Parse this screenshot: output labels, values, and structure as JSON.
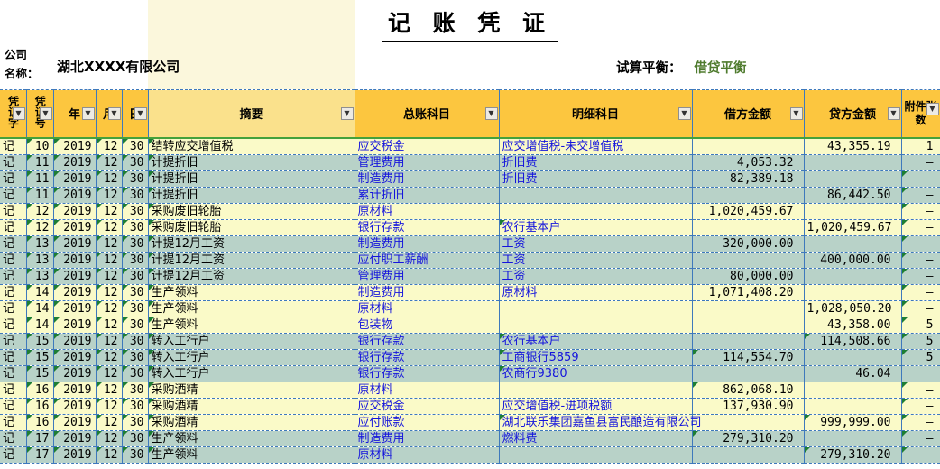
{
  "title": "记 账 凭 证",
  "company": {
    "label_line1": "公司",
    "label_line2": "名称：",
    "value": "湖北XXXX有限公司"
  },
  "trial_balance": {
    "label": "试算平衡：",
    "value": "借贷平衡"
  },
  "icons": {
    "filter_dropdown": "▼"
  },
  "colors": {
    "header_fill": "#FCC63F",
    "header_summary_fill": "#FAE18C",
    "row_yellow": "#FAFAC8",
    "row_teal": "#B8D2C8",
    "band_cream": "#FBF7DC",
    "grid_blue": "#3E79BC",
    "header_green_line": "#44A13C",
    "link_blue": "#1414DC",
    "triangle_green": "#1E7E34",
    "balance_green": "#4F7B2E"
  },
  "table": {
    "columns": [
      {
        "key": "zi",
        "label": "凭证字"
      },
      {
        "key": "hao",
        "label": "凭证号"
      },
      {
        "key": "nian",
        "label": "年"
      },
      {
        "key": "yue",
        "label": "月"
      },
      {
        "key": "ri",
        "label": "日"
      },
      {
        "key": "zhaiyao",
        "label": "摘要"
      },
      {
        "key": "zong",
        "label": "总账科目"
      },
      {
        "key": "mingxi",
        "label": "明细科目"
      },
      {
        "key": "jie",
        "label": "借方金额"
      },
      {
        "key": "dai",
        "label": "贷方金额"
      },
      {
        "key": "fujian",
        "label": "附件张数"
      }
    ],
    "rows": [
      {
        "zi": "记",
        "hao": "10",
        "nian": "2019",
        "yue": "12",
        "ri": "30",
        "zhaiyao": "结转应交增值税",
        "zong": "应交税金",
        "mingxi": "应交增值税-未交增值税",
        "jie": "",
        "dai": "43,355.19",
        "fujian": "1",
        "shade": "y",
        "tri": []
      },
      {
        "zi": "记",
        "hao": "11",
        "nian": "2019",
        "yue": "12",
        "ri": "30",
        "zhaiyao": "计提折旧",
        "zong": "管理费用",
        "mingxi": "折旧费",
        "jie": "4,053.32",
        "dai": "",
        "fujian": "–",
        "shade": "t",
        "tri": []
      },
      {
        "zi": "记",
        "hao": "11",
        "nian": "2019",
        "yue": "12",
        "ri": "30",
        "zhaiyao": "计提折旧",
        "zong": "制造费用",
        "mingxi": "折旧费",
        "jie": "82,389.18",
        "dai": "",
        "fujian": "–",
        "shade": "t",
        "tri": [
          "fujian"
        ]
      },
      {
        "zi": "记",
        "hao": "11",
        "nian": "2019",
        "yue": "12",
        "ri": "30",
        "zhaiyao": "计提折旧",
        "zong": "累计折旧",
        "mingxi": "",
        "jie": "",
        "dai": "86,442.50",
        "fujian": "–",
        "shade": "t",
        "tri": [
          "fujian"
        ]
      },
      {
        "zi": "记",
        "hao": "12",
        "nian": "2019",
        "yue": "12",
        "ri": "30",
        "zhaiyao": "采购废旧轮胎",
        "zong": "原材料",
        "mingxi": "",
        "jie": "1,020,459.67",
        "dai": "",
        "fujian": "–",
        "shade": "y",
        "tri": [
          "fujian"
        ]
      },
      {
        "zi": "记",
        "hao": "12",
        "nian": "2019",
        "yue": "12",
        "ri": "30",
        "zhaiyao": "采购废旧轮胎",
        "zong": "银行存款",
        "mingxi": "农行基本户",
        "jie": "",
        "dai": "1,020,459.67",
        "fujian": "–",
        "shade": "y",
        "tri": [
          "mingxi",
          "fujian"
        ]
      },
      {
        "zi": "记",
        "hao": "13",
        "nian": "2019",
        "yue": "12",
        "ri": "30",
        "zhaiyao": "计提12月工资",
        "zong": "制造费用",
        "mingxi": "工资",
        "jie": "320,000.00",
        "dai": "",
        "fujian": "–",
        "shade": "t",
        "tri": [
          "fujian"
        ]
      },
      {
        "zi": "记",
        "hao": "13",
        "nian": "2019",
        "yue": "12",
        "ri": "30",
        "zhaiyao": "计提12月工资",
        "zong": "应付职工薪酬",
        "mingxi": "工资",
        "jie": "",
        "dai": "400,000.00",
        "fujian": "–",
        "shade": "t",
        "tri": [
          "fujian"
        ]
      },
      {
        "zi": "记",
        "hao": "13",
        "nian": "2019",
        "yue": "12",
        "ri": "30",
        "zhaiyao": "计提12月工资",
        "zong": "管理费用",
        "mingxi": "工资",
        "jie": "80,000.00",
        "dai": "",
        "fujian": "–",
        "shade": "t",
        "tri": [
          "fujian"
        ]
      },
      {
        "zi": "记",
        "hao": "14",
        "nian": "2019",
        "yue": "12",
        "ri": "30",
        "zhaiyao": "生产领料",
        "zong": "制造费用",
        "mingxi": "原材料",
        "jie": "1,071,408.20",
        "dai": "",
        "fujian": "–",
        "shade": "y",
        "tri": [
          "fujian"
        ]
      },
      {
        "zi": "记",
        "hao": "14",
        "nian": "2019",
        "yue": "12",
        "ri": "30",
        "zhaiyao": "生产领料",
        "zong": "原材料",
        "mingxi": "",
        "jie": "",
        "dai": "1,028,050.20",
        "fujian": "–",
        "shade": "y",
        "tri": [
          "fujian"
        ]
      },
      {
        "zi": "记",
        "hao": "14",
        "nian": "2019",
        "yue": "12",
        "ri": "30",
        "zhaiyao": "生产领料",
        "zong": "包装物",
        "mingxi": "",
        "jie": "",
        "dai": "43,358.00",
        "fujian": "5",
        "shade": "y",
        "tri": [
          "fujian"
        ]
      },
      {
        "zi": "记",
        "hao": "15",
        "nian": "2019",
        "yue": "12",
        "ri": "30",
        "zhaiyao": "转入工行户",
        "zong": "银行存款",
        "mingxi": "农行基本户",
        "jie": "",
        "dai": "114,508.66",
        "fujian": "5",
        "shade": "t",
        "tri": [
          "mingxi",
          "dai",
          "fujian"
        ]
      },
      {
        "zi": "记",
        "hao": "15",
        "nian": "2019",
        "yue": "12",
        "ri": "30",
        "zhaiyao": "转入工行户",
        "zong": "银行存款",
        "mingxi": "工商银行5859",
        "jie": "114,554.70",
        "dai": "",
        "fujian": "5",
        "shade": "t",
        "tri": [
          "mingxi",
          "jie",
          "fujian"
        ]
      },
      {
        "zi": "记",
        "hao": "15",
        "nian": "2019",
        "yue": "12",
        "ri": "30",
        "zhaiyao": "转入工行户",
        "zong": "银行存款",
        "mingxi": "农商行9380",
        "jie": "",
        "dai": "46.04",
        "fujian": "",
        "shade": "t",
        "tri": [
          "mingxi"
        ]
      },
      {
        "zi": "记",
        "hao": "16",
        "nian": "2019",
        "yue": "12",
        "ri": "30",
        "zhaiyao": "采购酒精",
        "zong": "原材料",
        "mingxi": "",
        "jie": "862,068.10",
        "dai": "",
        "fujian": "–",
        "shade": "y",
        "tri": [
          "jie",
          "fujian"
        ]
      },
      {
        "zi": "记",
        "hao": "16",
        "nian": "2019",
        "yue": "12",
        "ri": "30",
        "zhaiyao": "采购酒精",
        "zong": "应交税金",
        "mingxi": "应交增值税-进项税额",
        "jie": "137,930.90",
        "dai": "",
        "fujian": "–",
        "shade": "y",
        "tri": [
          "fujian"
        ]
      },
      {
        "zi": "记",
        "hao": "16",
        "nian": "2019",
        "yue": "12",
        "ri": "30",
        "zhaiyao": "采购酒精",
        "zong": "应付账款",
        "mingxi": "湖北联乐集团嘉鱼县富民酿造有限公司",
        "jie": "",
        "dai": "999,999.00",
        "fujian": "–",
        "shade": "y",
        "tri": [
          "mingxi",
          "dai",
          "fujian"
        ]
      },
      {
        "zi": "记",
        "hao": "17",
        "nian": "2019",
        "yue": "12",
        "ri": "30",
        "zhaiyao": "生产领料",
        "zong": "制造费用",
        "mingxi": "燃料费",
        "jie": "279,310.20",
        "dai": "",
        "fujian": "–",
        "shade": "t",
        "tri": [
          "jie",
          "fujian"
        ]
      },
      {
        "zi": "记",
        "hao": "17",
        "nian": "2019",
        "yue": "12",
        "ri": "30",
        "zhaiyao": "生产领料",
        "zong": "原材料",
        "mingxi": "",
        "jie": "",
        "dai": "279,310.20",
        "fujian": "–",
        "shade": "t",
        "tri": [
          "dai",
          "fujian"
        ]
      }
    ]
  }
}
